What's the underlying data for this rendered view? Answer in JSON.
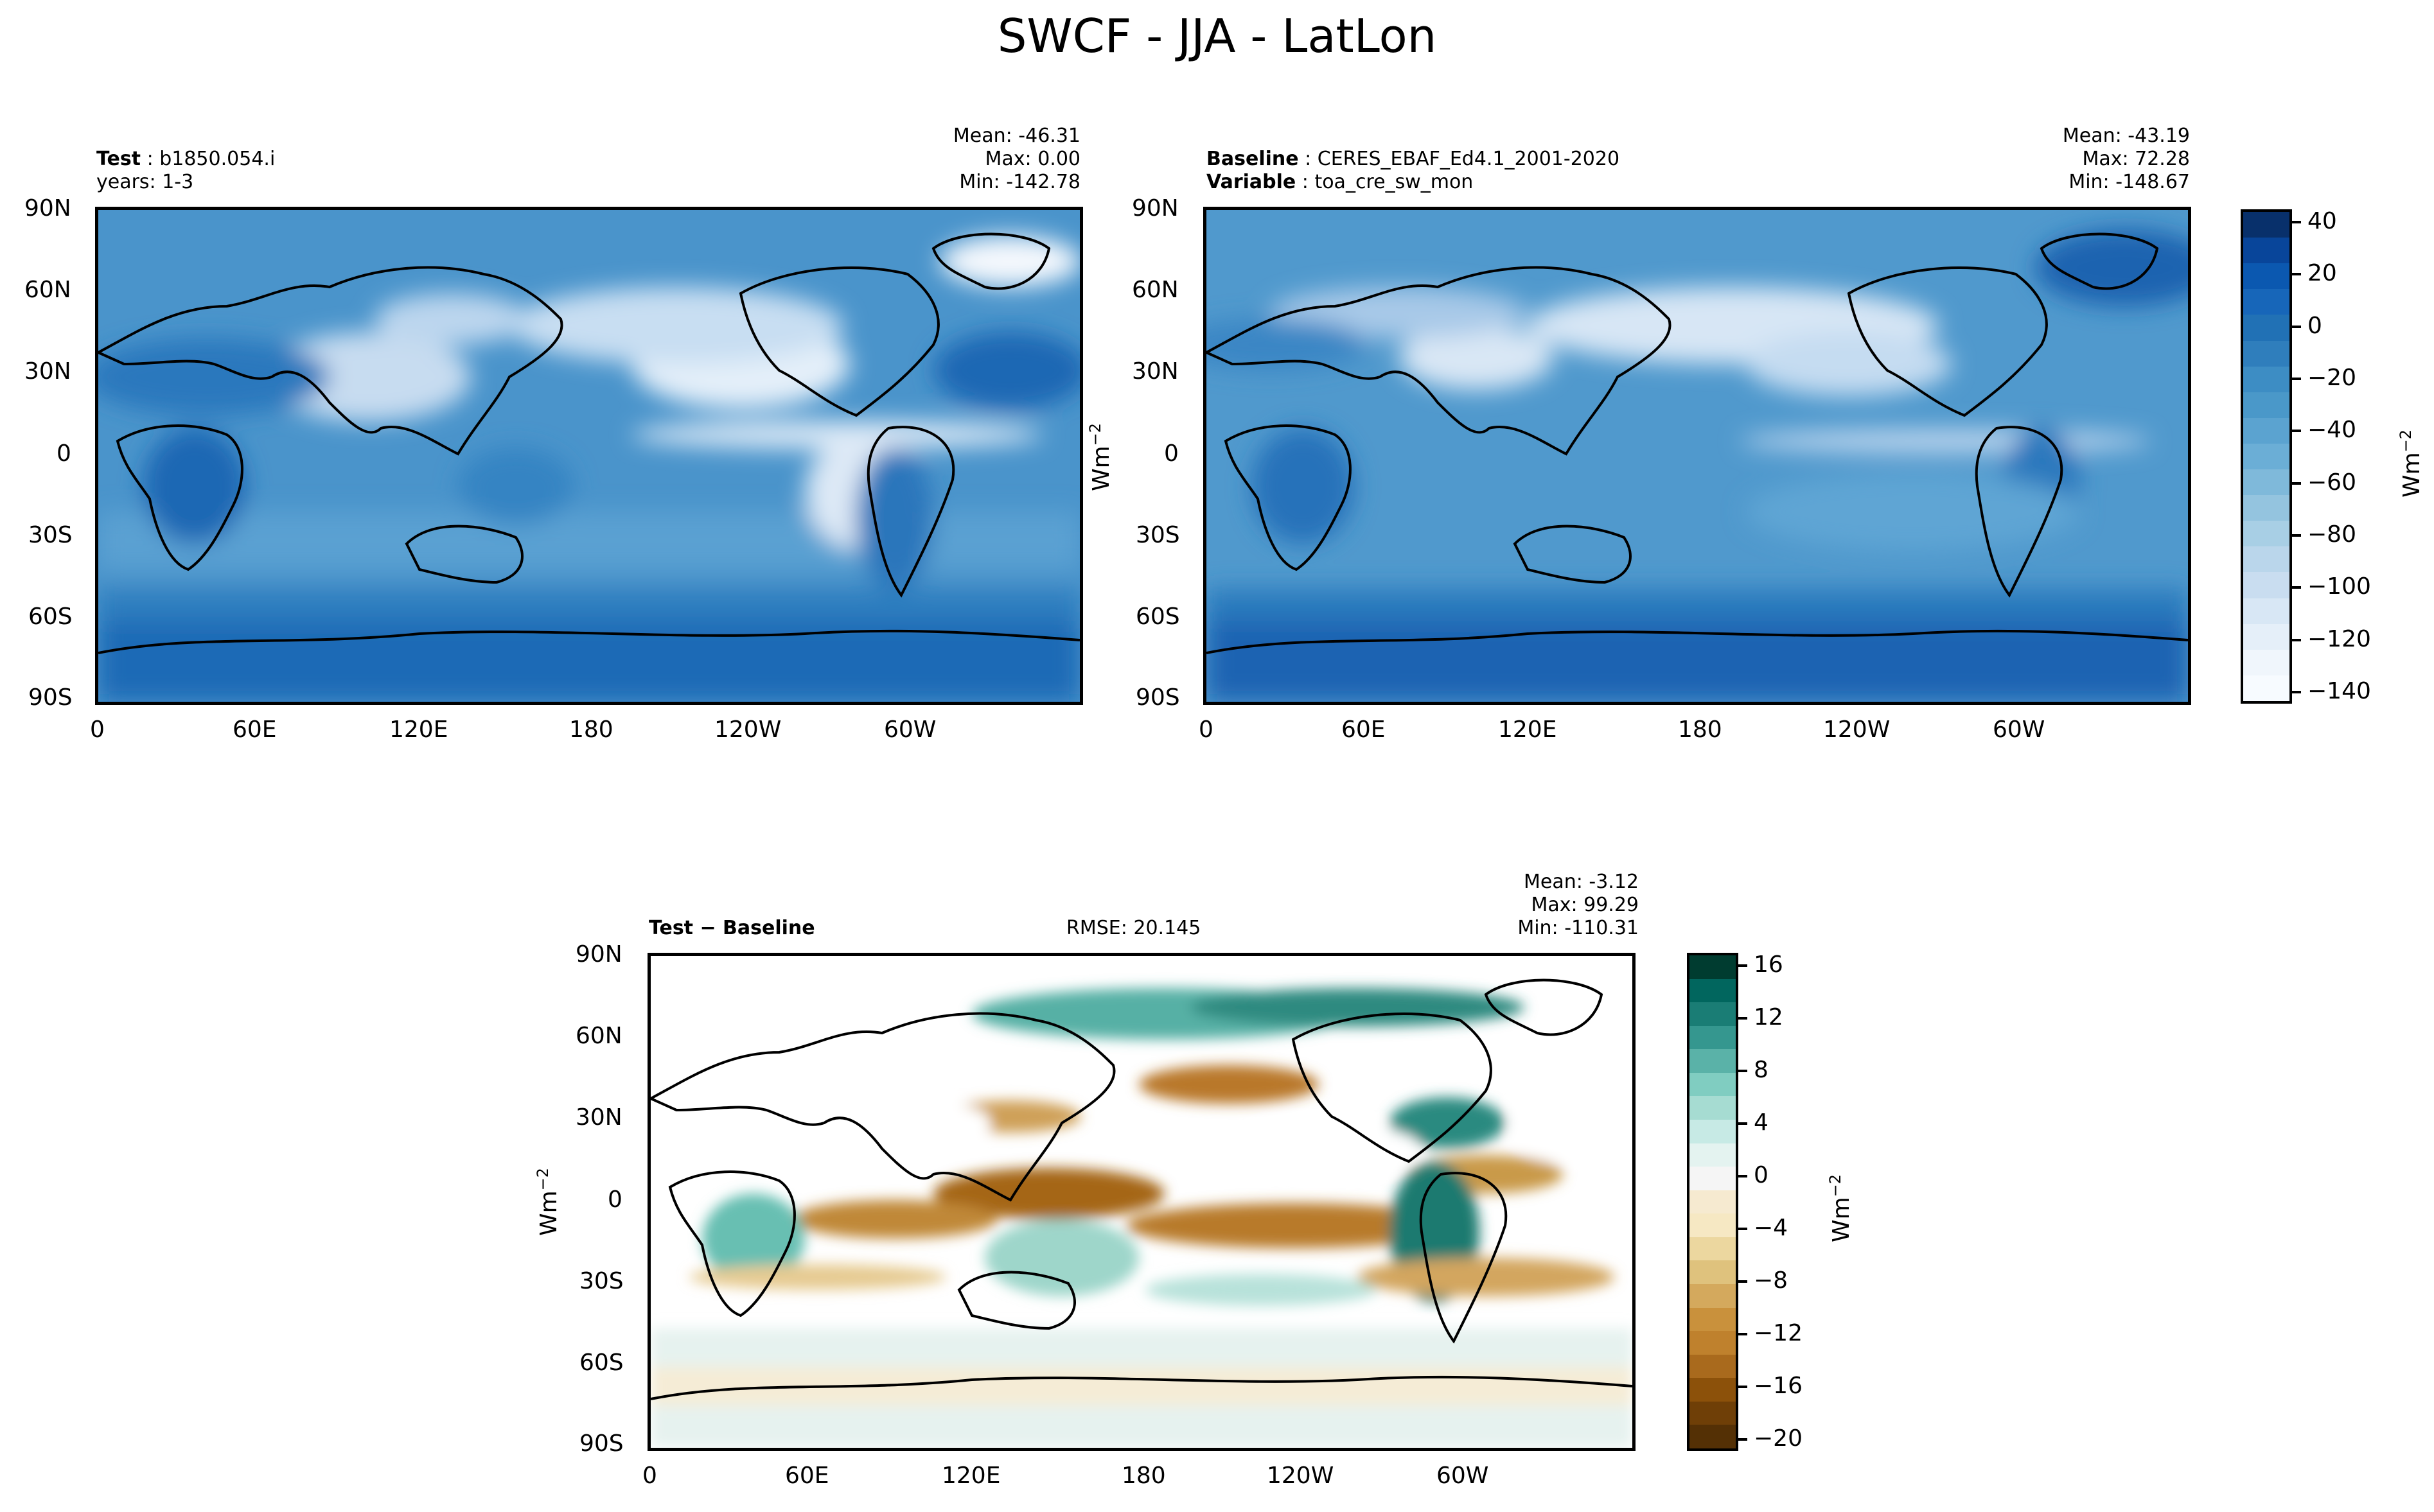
{
  "title": "SWCF - JJA - LatLon",
  "panels": {
    "test": {
      "label_bold": "Test",
      "label_text": "b1850.054.i",
      "line2": "years: 1-3",
      "mean": "Mean: -46.31",
      "max": "Max:  0.00",
      "min": "Min: -142.78"
    },
    "baseline": {
      "label_bold": "Baseline",
      "label_text": "CERES_EBAF_Ed4.1_2001-2020",
      "variable_bold": "Variable",
      "variable_text": "toa_cre_sw_mon",
      "mean": "Mean: -43.19",
      "max": "Max: 72.28",
      "min": "Min: -148.67"
    },
    "diff": {
      "label_bold": "Test − Baseline",
      "rmse": "RMSE: 20.145",
      "mean": "Mean: -3.12",
      "max": "Max: 99.29",
      "min": "Min: -110.31"
    }
  },
  "axes": {
    "lat_ticks": [
      "90N",
      "60N",
      "30N",
      "0",
      "30S",
      "60S",
      "90S"
    ],
    "lon_ticks": [
      "0",
      "60E",
      "120E",
      "180",
      "120W",
      "60W"
    ]
  },
  "units": {
    "base": "Wm",
    "exp": "−2"
  },
  "colorbars": {
    "main": {
      "ticks": [
        "40",
        "20",
        "0",
        "−20",
        "−40",
        "−60",
        "−80",
        "−100",
        "−120",
        "−140"
      ],
      "colors": [
        "#08306b",
        "#08459a",
        "#0b58b0",
        "#1766b9",
        "#2171b5",
        "#2f7ebc",
        "#3d8dc4",
        "#4a98c9",
        "#5ba3d0",
        "#6baed6",
        "#7fb9da",
        "#94c4df",
        "#a8cfe5",
        "#bad6eb",
        "#c9ddf0",
        "#d8e7f5",
        "#e5eff9",
        "#f0f6fc",
        "#f7fbff"
      ]
    },
    "diff": {
      "ticks": [
        "16",
        "12",
        "8",
        "4",
        "0",
        "−4",
        "−8",
        "−12",
        "−16",
        "−20"
      ],
      "colors": [
        "#003c30",
        "#01665e",
        "#1a7d75",
        "#35978f",
        "#5ab2a8",
        "#80cdc1",
        "#a6dcd2",
        "#c7eae5",
        "#e4f3f0",
        "#f5f5f5",
        "#f6ead0",
        "#f6e8c3",
        "#ecd79f",
        "#dfc27d",
        "#d4a95d",
        "#c9913c",
        "#bf812d",
        "#a96a1d",
        "#8c510a",
        "#6f3f07",
        "#543005"
      ]
    }
  },
  "chart_data": [
    {
      "type": "heatmap",
      "name": "Test",
      "variable": "SWCF",
      "stats": {
        "mean": -46.31,
        "max": 0.0,
        "min": -142.78
      },
      "xlim": [
        0,
        360
      ],
      "ylim": [
        -90,
        90
      ],
      "clim": [
        -150,
        40
      ]
    },
    {
      "type": "heatmap",
      "name": "Baseline",
      "variable": "toa_cre_sw_mon",
      "stats": {
        "mean": -43.19,
        "max": 72.28,
        "min": -148.67
      },
      "xlim": [
        0,
        360
      ],
      "ylim": [
        -90,
        90
      ],
      "clim": [
        -150,
        40
      ]
    },
    {
      "type": "heatmap",
      "name": "Test − Baseline",
      "stats": {
        "mean": -3.12,
        "max": 99.29,
        "min": -110.31,
        "rmse": 20.145
      },
      "xlim": [
        0,
        360
      ],
      "ylim": [
        -90,
        90
      ],
      "clim": [
        -20,
        18
      ]
    }
  ]
}
